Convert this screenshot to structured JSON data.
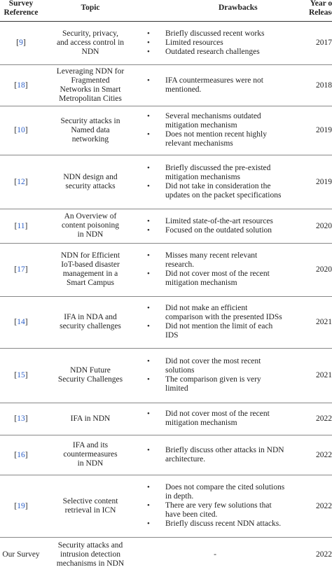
{
  "headers": {
    "ref": [
      "Survey",
      "Reference"
    ],
    "topic": "Topic",
    "drawbacks": "Drawbacks",
    "year": [
      "Year of",
      "Release"
    ]
  },
  "rows": [
    {
      "ref": "9",
      "topic": [
        "Security, privacy,",
        "and access control in",
        "NDN"
      ],
      "drawbacks": [
        [
          "Briefly discussed recent works"
        ],
        [
          "Limited resources"
        ],
        [
          "Outdated research challenges"
        ]
      ],
      "year": "2017"
    },
    {
      "ref": "18",
      "topic": [
        "Leveraging NDN for",
        "Fragmented",
        "Networks in Smart",
        "Metropolitan Cities"
      ],
      "drawbacks": [
        [
          "IFA countermeasures were not",
          "mentioned."
        ]
      ],
      "year": "2018"
    },
    {
      "ref": "10",
      "topic": [
        "Security attacks in",
        "Named data",
        "networking"
      ],
      "drawbacks": [
        [
          "Several mechanisms outdated",
          "mitigation mechanism"
        ],
        [
          "Does not mention recent highly",
          "relevant mechanisms"
        ]
      ],
      "year": "2019"
    },
    {
      "ref": "12",
      "topic": [
        "NDN design and",
        "security attacks"
      ],
      "drawbacks": [
        [
          "Briefly discussed the pre-existed",
          "mitigation mechanisms"
        ],
        [
          "Did not take in consideration the",
          "updates on the packet specifications"
        ]
      ],
      "year": "2019"
    },
    {
      "ref": "11",
      "topic": [
        "An Overview of",
        "content poisoning",
        "in NDN"
      ],
      "drawbacks": [
        [
          "Limited state-of-the-art resources"
        ],
        [
          "Focused on the outdated solution"
        ]
      ],
      "year": "2020"
    },
    {
      "ref": "17",
      "topic": [
        "NDN for Efficient",
        "IoT-based disaster",
        "management in a",
        "Smart Campus"
      ],
      "drawbacks": [
        [
          "Misses many recent relevant",
          "research."
        ],
        [
          "Did not cover most of the recent",
          "mitigation mechanism"
        ]
      ],
      "year": "2020"
    },
    {
      "ref": "14",
      "topic": [
        "IFA in NDA and",
        "security challenges"
      ],
      "drawbacks": [
        [
          "Did not make an efficient",
          "comparison with the presented IDSs"
        ],
        [
          "Did not mention the limit of each",
          "IDS"
        ]
      ],
      "year": "2021"
    },
    {
      "ref": "15",
      "topic": [
        "NDN Future",
        "Security Challenges"
      ],
      "drawbacks": [
        [
          "Did not cover the most recent",
          "solutions"
        ],
        [
          "The comparison given is very",
          "limited"
        ]
      ],
      "year": "2021"
    },
    {
      "ref": "13",
      "topic": [
        "IFA in NDN"
      ],
      "drawbacks": [
        [
          "Did not cover most of the recent",
          "mitigation mechanism"
        ]
      ],
      "year": "2022"
    },
    {
      "ref": "16",
      "topic": [
        "IFA and its",
        "countermeasures",
        "in NDN"
      ],
      "drawbacks": [
        [
          "Briefly discuss other attacks in NDN",
          "architecture."
        ]
      ],
      "year": "2022"
    },
    {
      "ref": "19",
      "topic": [
        "Selective content",
        "retrieval in ICN"
      ],
      "drawbacks": [
        [
          "Does not compare the cited solutions",
          "in depth."
        ],
        [
          "There are very few solutions that",
          "have been cited."
        ],
        [
          "Briefly discuss recent NDN attacks."
        ]
      ],
      "year": "2022"
    },
    {
      "ref": "Our Survey",
      "topic": [
        "Security attacks and",
        "intrusion detection",
        "mechanisms in NDN"
      ],
      "drawbacks": "-",
      "year": "2022"
    }
  ]
}
